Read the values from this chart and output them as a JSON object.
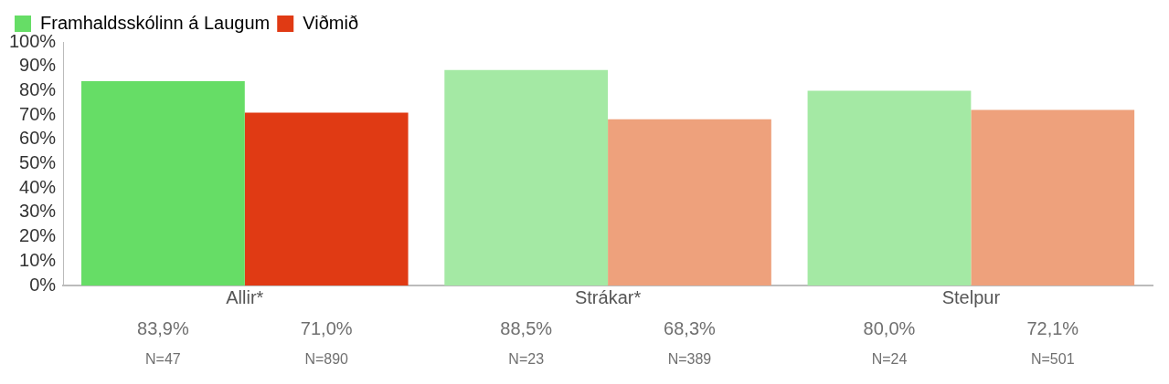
{
  "chart_data": {
    "type": "bar",
    "categories": [
      "Allir*",
      "Strákar*",
      "Stelpur"
    ],
    "series": [
      {
        "name": "Framhaldsskólinn á Laugum",
        "color": "#66dd66",
        "colors": [
          "#66dd66",
          "#a4e9a4",
          "#a4e9a4"
        ],
        "values": [
          83.9,
          88.5,
          80.0
        ],
        "value_labels": [
          "83,9%",
          "88,5%",
          "80,0%"
        ]
      },
      {
        "name": "Viðmið",
        "color": "#e03a14",
        "colors": [
          "#e03a14",
          "#eea17c",
          "#eea17c"
        ],
        "values": [
          71.0,
          68.3,
          72.1
        ],
        "value_labels": [
          "71,0%",
          "68,3%",
          "72,1%"
        ]
      }
    ],
    "ylim": [
      0,
      100
    ],
    "yticks": [
      {
        "value": 0,
        "label": "0%"
      },
      {
        "value": 10,
        "label": "10%"
      },
      {
        "value": 20,
        "label": "20%"
      },
      {
        "value": 30,
        "label": "30%"
      },
      {
        "value": 40,
        "label": "40%"
      },
      {
        "value": 50,
        "label": "50%"
      },
      {
        "value": 60,
        "label": "60%"
      },
      {
        "value": 70,
        "label": "70%"
      },
      {
        "value": 80,
        "label": "80%"
      },
      {
        "value": 90,
        "label": "90%"
      },
      {
        "value": 100,
        "label": "100%"
      }
    ],
    "grid": false,
    "legend": "top",
    "annotations": [
      "N=47",
      "N=890",
      "N=23",
      "N=389",
      "N=24",
      "N=501"
    ]
  }
}
